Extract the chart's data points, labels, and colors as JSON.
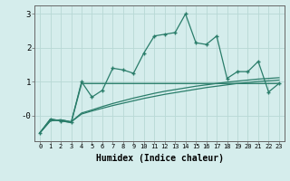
{
  "xlabel": "Humidex (Indice chaleur)",
  "x_values": [
    0,
    1,
    2,
    3,
    4,
    5,
    6,
    7,
    8,
    9,
    10,
    11,
    12,
    13,
    14,
    15,
    16,
    17,
    18,
    19,
    20,
    21,
    22,
    23
  ],
  "line1_y": [
    -0.5,
    -0.1,
    -0.15,
    -0.2,
    1.0,
    0.55,
    0.75,
    1.4,
    1.35,
    1.25,
    1.85,
    2.35,
    2.4,
    2.45,
    3.0,
    2.15,
    2.1,
    2.35,
    1.1,
    1.3,
    1.3,
    1.6,
    0.7,
    0.95
  ],
  "line2_y": [
    -0.5,
    -0.1,
    -0.15,
    -0.2,
    0.95,
    0.95,
    0.95,
    0.95,
    0.95,
    0.95,
    0.95,
    0.95,
    0.95,
    0.95,
    0.95,
    0.95,
    0.95,
    0.95,
    0.95,
    0.95,
    0.95,
    0.95,
    0.95,
    0.95
  ],
  "line3_y": [
    -0.5,
    -0.15,
    -0.12,
    -0.18,
    0.08,
    0.17,
    0.27,
    0.36,
    0.44,
    0.52,
    0.59,
    0.66,
    0.72,
    0.77,
    0.82,
    0.87,
    0.91,
    0.95,
    0.99,
    1.02,
    1.05,
    1.08,
    1.1,
    1.12
  ],
  "line4_y": [
    -0.5,
    -0.15,
    -0.12,
    -0.18,
    0.05,
    0.14,
    0.22,
    0.3,
    0.37,
    0.44,
    0.51,
    0.57,
    0.63,
    0.68,
    0.73,
    0.78,
    0.83,
    0.87,
    0.91,
    0.95,
    0.98,
    1.01,
    1.03,
    1.05
  ],
  "line_color": "#2a7d6a",
  "bg_color": "#d5edec",
  "grid_color": "#b8d8d5",
  "ylim": [
    -0.75,
    3.25
  ],
  "xlim": [
    -0.5,
    23.5
  ],
  "yticks": [
    0,
    1,
    2,
    3
  ],
  "ytick_labels": [
    "-0",
    "1",
    "2",
    "3"
  ],
  "xtick_labels": [
    "0",
    "1",
    "2",
    "3",
    "4",
    "5",
    "6",
    "7",
    "8",
    "9",
    "10",
    "11",
    "12",
    "13",
    "14",
    "15",
    "16",
    "17",
    "18",
    "19",
    "20",
    "21",
    "22",
    "23"
  ]
}
